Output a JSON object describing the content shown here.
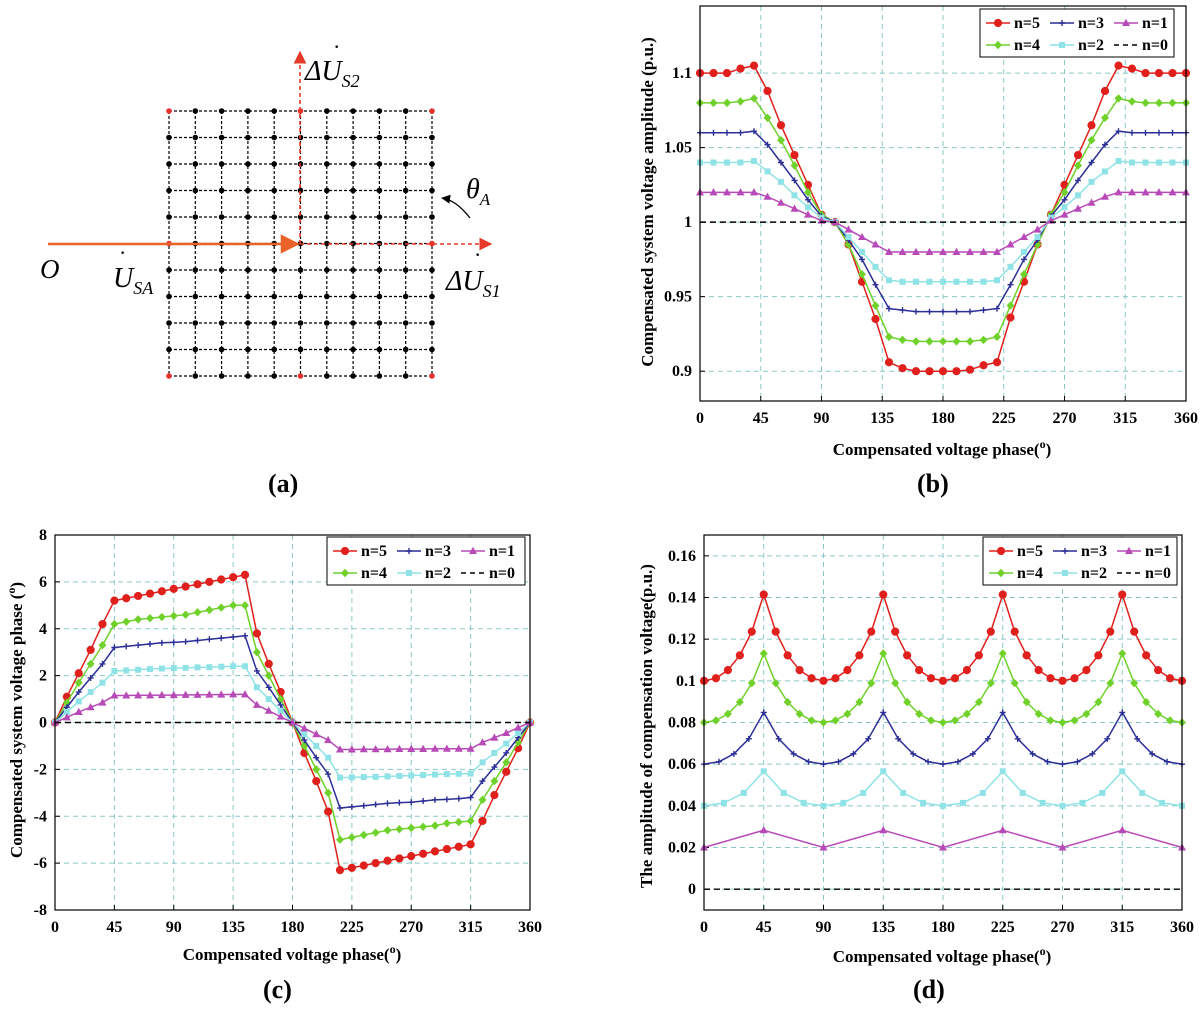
{
  "panel_a": {
    "label": "(a)",
    "origin_label": "O",
    "usa_label": "U",
    "usa_sub": "SA",
    "du1_label": "ΔU",
    "du1_sub": "S1",
    "du2_label": "ΔU",
    "du2_sub": "S2",
    "theta_label": "θ",
    "theta_sub": "A",
    "colors": {
      "grid": "#000000",
      "corner": "#e8322a",
      "arrow": "#e8622a",
      "axis": "#e53a2a"
    }
  },
  "colors": {
    "n5": "#e0201c",
    "n4": "#6fd12a",
    "n3": "#2c2f96",
    "n2": "#8fe3e6",
    "n1": "#b84ab8",
    "n0": "#000000",
    "grid": "#8cc7c7"
  },
  "chart_data": [
    {
      "id": "b",
      "label": "(b)",
      "type": "line",
      "xlabel": "Compensated voltage phase",
      "xlabel_sup": "o",
      "ylabel": "Compensated system voltage amplitude (p.u.)",
      "xlim": [
        0,
        360
      ],
      "ylim": [
        0.88,
        1.145
      ],
      "xticks": [
        0,
        45,
        90,
        135,
        180,
        225,
        270,
        315,
        360
      ],
      "xtick_labels": [
        "0",
        "45",
        "90",
        "135",
        "180",
        "225",
        "270",
        "315",
        "360"
      ],
      "yticks": [
        0.9,
        0.95,
        1,
        1.05,
        1.1
      ],
      "ytick_labels": [
        "0.9",
        "0.95",
        "1",
        "1.05",
        "1.1"
      ],
      "legend": [
        "n=5",
        "n=3",
        "n=1",
        "n=4",
        "n=2",
        "n=0"
      ],
      "legend_position": "top-right",
      "series": [
        {
          "name": "n=5",
          "key": "n5",
          "marker": "circle",
          "ks": [
            5,
            6,
            7,
            8,
            9
          ],
          "values": [
            1.1,
            1.1,
            1.1,
            1.103,
            1.105,
            1.088,
            1.065,
            1.045,
            1.025,
            1.005,
            1.0,
            0.985,
            0.96,
            0.935,
            0.906,
            0.902,
            0.9,
            0.9,
            0.9,
            0.9,
            0.901,
            0.904,
            0.906,
            0.936,
            0.96,
            0.985,
            1.005,
            1.025,
            1.045,
            1.065,
            1.088,
            1.105,
            1.103,
            1.1,
            1.1,
            1.1,
            1.1
          ]
        },
        {
          "name": "n=4",
          "key": "n4",
          "marker": "diamond",
          "ks": [
            5,
            6,
            7,
            8,
            9
          ],
          "values": [
            1.08,
            1.08,
            1.08,
            1.081,
            1.083,
            1.07,
            1.055,
            1.038,
            1.02,
            1.005,
            1.0,
            0.985,
            0.965,
            0.944,
            0.923,
            0.921,
            0.92,
            0.92,
            0.92,
            0.92,
            0.92,
            0.921,
            0.923,
            0.944,
            0.965,
            0.985,
            1.005,
            1.02,
            1.038,
            1.055,
            1.07,
            1.083,
            1.081,
            1.08,
            1.08,
            1.08,
            1.08
          ]
        },
        {
          "name": "n=3",
          "key": "n3",
          "marker": "plus",
          "ks": [
            5,
            6,
            7,
            8,
            9
          ],
          "values": [
            1.06,
            1.06,
            1.06,
            1.06,
            1.061,
            1.052,
            1.04,
            1.028,
            1.015,
            1.004,
            1.0,
            0.988,
            0.975,
            0.958,
            0.942,
            0.941,
            0.94,
            0.94,
            0.94,
            0.94,
            0.94,
            0.941,
            0.942,
            0.958,
            0.975,
            0.988,
            1.004,
            1.015,
            1.028,
            1.04,
            1.052,
            1.061,
            1.06,
            1.06,
            1.06,
            1.06,
            1.06
          ]
        },
        {
          "name": "n=2",
          "key": "n2",
          "marker": "square",
          "ks": [
            5,
            7,
            9
          ],
          "values": [
            1.04,
            1.04,
            1.04,
            1.04,
            1.041,
            1.034,
            1.027,
            1.018,
            1.01,
            1.003,
            1.0,
            0.99,
            0.98,
            0.97,
            0.961,
            0.96,
            0.96,
            0.96,
            0.96,
            0.96,
            0.96,
            0.96,
            0.961,
            0.97,
            0.98,
            0.99,
            1.003,
            1.01,
            1.018,
            1.027,
            1.034,
            1.041,
            1.04,
            1.04,
            1.04,
            1.04,
            1.04
          ]
        },
        {
          "name": "n=1",
          "key": "n1",
          "marker": "triangle",
          "ks": [
            9
          ],
          "values": [
            1.02,
            1.02,
            1.02,
            1.02,
            1.02,
            1.017,
            1.013,
            1.009,
            1.005,
            1.001,
            1.0,
            0.995,
            0.99,
            0.985,
            0.98,
            0.98,
            0.98,
            0.98,
            0.98,
            0.98,
            0.98,
            0.98,
            0.98,
            0.985,
            0.99,
            0.995,
            1.001,
            1.005,
            1.009,
            1.013,
            1.017,
            1.02,
            1.02,
            1.02,
            1.02,
            1.02,
            1.02
          ]
        },
        {
          "name": "n=0",
          "key": "n0",
          "marker": "none",
          "dashed": true,
          "values": [
            1.0,
            1.0
          ]
        }
      ]
    },
    {
      "id": "c",
      "label": "(c)",
      "type": "line",
      "xlabel": "Compensated voltage phase",
      "xlabel_sup": "o",
      "ylabel": "Compensated system voltage phase",
      "ylabel_sup": "o",
      "xlim": [
        0,
        360
      ],
      "ylim": [
        -8,
        8
      ],
      "xticks": [
        0,
        45,
        90,
        135,
        180,
        225,
        270,
        315,
        360
      ],
      "xtick_labels": [
        "0",
        "45",
        "90",
        "135",
        "180",
        "225",
        "270",
        "315",
        "360"
      ],
      "yticks": [
        -8,
        -6,
        -4,
        -2,
        0,
        2,
        4,
        6,
        8
      ],
      "ytick_labels": [
        "-8",
        "-6",
        "-4",
        "-2",
        "0",
        "2",
        "4",
        "6",
        "8"
      ],
      "legend": [
        "n=5",
        "n=3",
        "n=1",
        "n=4",
        "n=2",
        "n=0"
      ],
      "legend_position": "top-right",
      "series": [
        {
          "name": "n=5",
          "key": "n5",
          "marker": "circle",
          "ks": [
            5,
            6,
            7,
            8,
            9
          ],
          "values": [
            0,
            1.1,
            2.1,
            3.1,
            4.2,
            5.2,
            5.3,
            5.4,
            5.5,
            5.6,
            5.7,
            5.8,
            5.9,
            6.0,
            6.1,
            6.2,
            6.3,
            3.8,
            2.5,
            1.3,
            0,
            -1.3,
            -2.5,
            -3.8,
            -6.3,
            -6.2,
            -6.1,
            -6.0,
            -5.9,
            -5.8,
            -5.7,
            -5.6,
            -5.5,
            -5.4,
            -5.3,
            -5.2,
            -4.2,
            -3.1,
            -2.1,
            -1.1,
            0
          ]
        },
        {
          "name": "n=4",
          "key": "n4",
          "marker": "diamond",
          "ks": [
            5,
            6,
            7,
            8,
            9
          ],
          "values": [
            0,
            0.85,
            1.7,
            2.5,
            3.3,
            4.2,
            4.3,
            4.4,
            4.45,
            4.5,
            4.55,
            4.6,
            4.7,
            4.8,
            4.9,
            5.0,
            5.0,
            3.0,
            2.0,
            1.0,
            0,
            -1.0,
            -2.0,
            -3.0,
            -5.0,
            -4.9,
            -4.8,
            -4.7,
            -4.6,
            -4.55,
            -4.5,
            -4.45,
            -4.4,
            -4.3,
            -4.25,
            -4.2,
            -3.3,
            -2.5,
            -1.7,
            -0.85,
            0
          ]
        },
        {
          "name": "n=3",
          "key": "n3",
          "marker": "plus",
          "ks": [
            5,
            6,
            7,
            8,
            9
          ],
          "values": [
            0,
            0.65,
            1.3,
            1.9,
            2.5,
            3.2,
            3.25,
            3.3,
            3.35,
            3.4,
            3.42,
            3.45,
            3.5,
            3.55,
            3.6,
            3.65,
            3.7,
            2.2,
            1.5,
            0.75,
            0,
            -0.75,
            -1.5,
            -2.2,
            -3.65,
            -3.6,
            -3.55,
            -3.5,
            -3.45,
            -3.42,
            -3.4,
            -3.35,
            -3.3,
            -3.28,
            -3.25,
            -3.2,
            -2.5,
            -1.9,
            -1.3,
            -0.65,
            0
          ]
        },
        {
          "name": "n=2",
          "key": "n2",
          "marker": "square",
          "ks": [
            5,
            7,
            9
          ],
          "values": [
            0,
            0.45,
            0.9,
            1.3,
            1.7,
            2.2,
            2.22,
            2.25,
            2.28,
            2.3,
            2.32,
            2.33,
            2.35,
            2.36,
            2.38,
            2.4,
            2.4,
            1.5,
            1.0,
            0.5,
            0,
            -0.5,
            -1.0,
            -1.5,
            -2.35,
            -2.34,
            -2.33,
            -2.32,
            -2.3,
            -2.28,
            -2.26,
            -2.24,
            -2.22,
            -2.2,
            -2.19,
            -2.18,
            -1.7,
            -1.3,
            -0.9,
            -0.45,
            0
          ]
        },
        {
          "name": "n=1",
          "key": "n1",
          "marker": "triangle",
          "ks": [
            9
          ],
          "values": [
            0,
            0.22,
            0.45,
            0.65,
            0.85,
            1.15,
            1.15,
            1.16,
            1.16,
            1.17,
            1.17,
            1.18,
            1.18,
            1.19,
            1.19,
            1.2,
            1.2,
            0.75,
            0.5,
            0.25,
            0,
            -0.25,
            -0.5,
            -0.75,
            -1.15,
            -1.15,
            -1.14,
            -1.14,
            -1.14,
            -1.13,
            -1.13,
            -1.13,
            -1.12,
            -1.12,
            -1.12,
            -1.12,
            -0.85,
            -0.65,
            -0.45,
            -0.22,
            0
          ]
        },
        {
          "name": "n=0",
          "key": "n0",
          "marker": "none",
          "dashed": true,
          "values": [
            0,
            0
          ]
        }
      ]
    },
    {
      "id": "d",
      "label": "(d)",
      "type": "line",
      "xlabel": "Compensated voltage phase",
      "xlabel_sup": "o",
      "ylabel": "The amplitude of compensation voltage(p.u.)",
      "xlim": [
        0,
        360
      ],
      "ylim": [
        -0.01,
        0.17
      ],
      "xticks": [
        0,
        45,
        90,
        135,
        180,
        225,
        270,
        315,
        360
      ],
      "xtick_labels": [
        "0",
        "45",
        "90",
        "135",
        "180",
        "225",
        "270",
        "315",
        "360"
      ],
      "yticks": [
        0,
        0.02,
        0.04,
        0.06,
        0.08,
        0.1,
        0.12,
        0.14,
        0.16
      ],
      "ytick_labels": [
        "0",
        "0.02",
        "0.04",
        "0.06",
        "0.08",
        "0.1",
        "0.12",
        "0.14",
        "0.16"
      ],
      "legend": [
        "n=5",
        "n=3",
        "n=1",
        "n=4",
        "n=2",
        "n=0"
      ],
      "legend_position": "top-right",
      "series": [
        {
          "name": "n=5",
          "key": "n5",
          "marker": "circle",
          "ks": [
            5
          ],
          "base": 0.1,
          "values": []
        },
        {
          "name": "n=4",
          "key": "n4",
          "marker": "diamond",
          "ks": [
            5
          ],
          "base": 0.08,
          "values": []
        },
        {
          "name": "n=3",
          "key": "n3",
          "marker": "plus",
          "ks": [
            4
          ],
          "base": 0.06,
          "values": []
        },
        {
          "name": "n=2",
          "key": "n2",
          "marker": "square",
          "ks": [
            3
          ],
          "base": 0.04,
          "values": []
        },
        {
          "name": "n=1",
          "key": "n1",
          "marker": "triangle",
          "ks": [
            1
          ],
          "base": 0.02,
          "values": []
        },
        {
          "name": "n=0",
          "key": "n0",
          "marker": "none",
          "dashed": true,
          "base": 0,
          "values": [
            0,
            0
          ]
        }
      ]
    }
  ]
}
